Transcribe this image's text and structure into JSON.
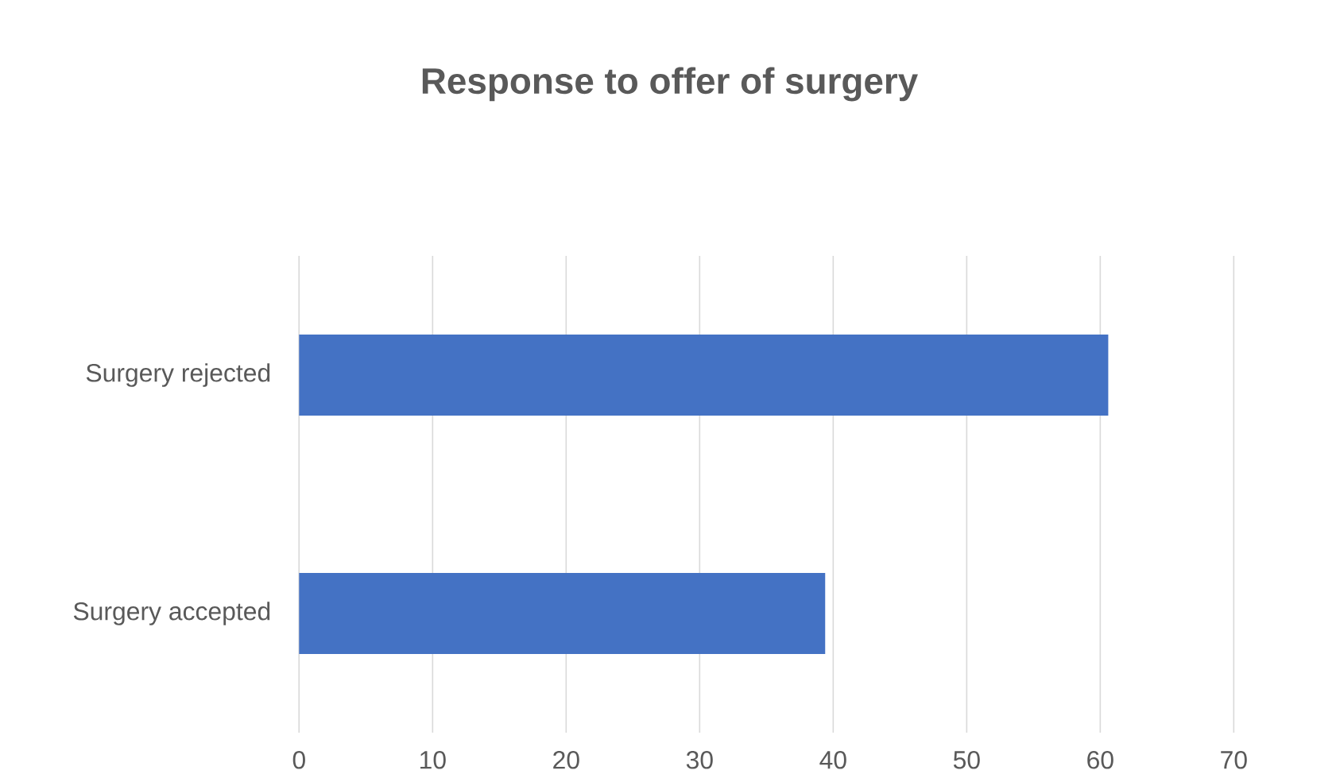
{
  "chart_data": {
    "type": "bar",
    "orientation": "horizontal",
    "title": "Response to offer of surgery",
    "categories": [
      "Surgery rejected",
      "Surgery accepted"
    ],
    "values": [
      60.6,
      39.4
    ],
    "color": "#4472c4",
    "xlim": [
      0,
      70
    ],
    "xticks": [
      0,
      10,
      20,
      30,
      40,
      50,
      60,
      70
    ],
    "grid": "x"
  }
}
